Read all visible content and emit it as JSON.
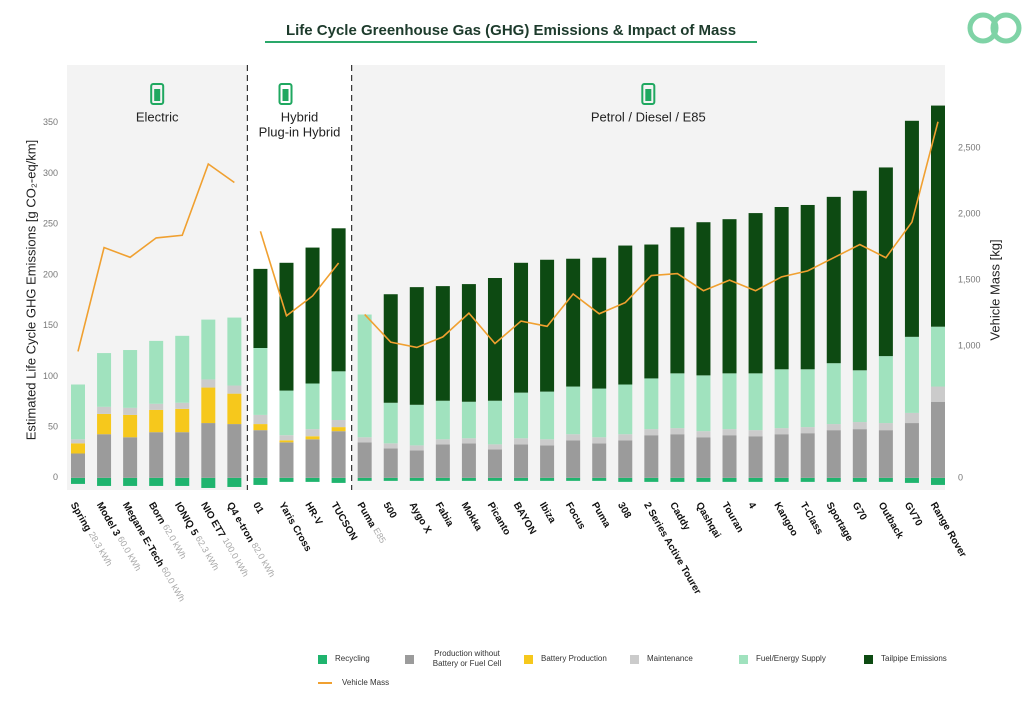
{
  "chart_data": {
    "type": "bar",
    "stacked": true,
    "title": "Life Cycle Greenhouse Gas (GHG) Emissions & Impact of Mass",
    "y_label": "Estimated Life Cycle GHG Emissions [g CO₂-eq/km]",
    "y2_label": "Vehicle Mass [kg]",
    "sections": [
      {
        "label": [
          "Electric"
        ],
        "categories": [
          "Spring",
          "Model 3",
          "Megane E-Tech",
          "Born",
          "IONIQ 5",
          "NIO ET7",
          "Q4 e-tron"
        ],
        "notes": [
          "28.3 kWh",
          "60.0 kWh",
          "60.0 kWh",
          "62.0 kWh",
          "62.3 kWh",
          "100.0 kWh",
          "82.0 kWh"
        ]
      },
      {
        "label": [
          "Hybrid",
          "Plug-in Hybrid"
        ],
        "categories": [
          "01",
          "Yaris Cross",
          "HR-V",
          "TUCSON"
        ],
        "notes": [
          null,
          null,
          null,
          null
        ]
      },
      {
        "label": [
          "Petrol / Diesel / E85"
        ],
        "categories": [
          "Puma",
          "500",
          "Aygo X",
          "Fabia",
          "Mokka",
          "Picanto",
          "BAYON",
          "Ibiza",
          "Focus",
          "Puma",
          "308",
          "2 Series Active Tourer",
          "Caddy",
          "Qashqai",
          "Touran",
          "4",
          "Kangoo",
          "T-Class",
          "Sportage",
          "G70",
          "Outback",
          "GV70",
          "Range Rover"
        ],
        "notes": [
          "E85",
          null,
          null,
          null,
          null,
          null,
          null,
          null,
          null,
          null,
          null,
          null,
          null,
          null,
          null,
          null,
          null,
          null,
          null,
          null,
          null,
          null,
          null
        ]
      }
    ],
    "series": [
      {
        "name": "Recycling",
        "color": "#1fb46e",
        "values": [
          -6,
          -8,
          -8,
          -8,
          -8,
          -10,
          -9,
          -7,
          -4,
          -4,
          -5,
          -3,
          -3,
          -3,
          -3,
          -3,
          -3,
          -3,
          -3,
          -3,
          -3,
          -4,
          -4,
          -4,
          -4,
          -4,
          -4,
          -4,
          -4,
          -4,
          -4,
          -4,
          -5,
          -7
        ]
      },
      {
        "name": "Production without Battery or Fuel Cell",
        "color": "#9b9b9b",
        "values": [
          24,
          43,
          40,
          45,
          45,
          54,
          53,
          47,
          35,
          38,
          46,
          35,
          29,
          27,
          33,
          34,
          28,
          33,
          32,
          37,
          34,
          37,
          42,
          43,
          40,
          42,
          41,
          43,
          44,
          47,
          48,
          47,
          54,
          75
        ]
      },
      {
        "name": "Battery Production",
        "color": "#f6c81c",
        "values": [
          10,
          20,
          22,
          22,
          23,
          35,
          30,
          6,
          2,
          3,
          4,
          0,
          0,
          0,
          0,
          0,
          0,
          0,
          0,
          0,
          0,
          0,
          0,
          0,
          0,
          0,
          0,
          0,
          0,
          0,
          0,
          0,
          0,
          0
        ]
      },
      {
        "name": "Maintenance",
        "color": "#cbcbcb",
        "values": [
          4,
          7,
          7,
          6,
          6,
          8,
          8,
          9,
          5,
          7,
          7,
          5,
          5,
          5,
          5,
          5,
          5,
          6,
          6,
          6,
          6,
          6,
          6,
          6,
          6,
          6,
          6,
          6,
          6,
          6,
          7,
          7,
          10,
          15
        ]
      },
      {
        "name": "Fuel/Energy Supply",
        "color": "#a0e2be",
        "values": [
          54,
          53,
          57,
          62,
          66,
          59,
          67,
          66,
          44,
          45,
          48,
          121,
          40,
          40,
          38,
          36,
          43,
          45,
          47,
          47,
          48,
          49,
          50,
          54,
          55,
          55,
          56,
          58,
          57,
          60,
          51,
          66,
          75,
          59
        ]
      },
      {
        "name": "Tailpipe Emissions",
        "color": "#0d4a12",
        "values": [
          0,
          0,
          0,
          0,
          0,
          0,
          0,
          78,
          126,
          134,
          141,
          0,
          107,
          116,
          113,
          116,
          121,
          128,
          130,
          126,
          129,
          137,
          132,
          144,
          151,
          152,
          158,
          160,
          162,
          164,
          177,
          186,
          213,
          218
        ]
      },
      {
        "name": "Vehicle Mass",
        "type": "line",
        "axis": "y2",
        "color": "#f0a030",
        "values": [
          960,
          1747,
          1673,
          1820,
          1840,
          2380,
          2240,
          1870,
          1230,
          1380,
          1630,
          1240,
          1030,
          990,
          1070,
          1250,
          1020,
          1190,
          1150,
          1395,
          1245,
          1330,
          1535,
          1550,
          1420,
          1500,
          1420,
          1525,
          1570,
          1670,
          1770,
          1670,
          1940,
          2700
        ]
      }
    ],
    "ylim": [
      -12,
      407
    ],
    "yticks": [
      0,
      50,
      100,
      150,
      200,
      250,
      300,
      350
    ],
    "y2lim": [
      -90,
      3130
    ],
    "y2ticks": [
      0,
      {
        "value": 1000,
        "label": "1,000"
      },
      {
        "value": 1500,
        "label": "1,500"
      },
      {
        "value": 2000,
        "label": "2,000"
      },
      {
        "value": 2500,
        "label": "2,500"
      }
    ]
  }
}
